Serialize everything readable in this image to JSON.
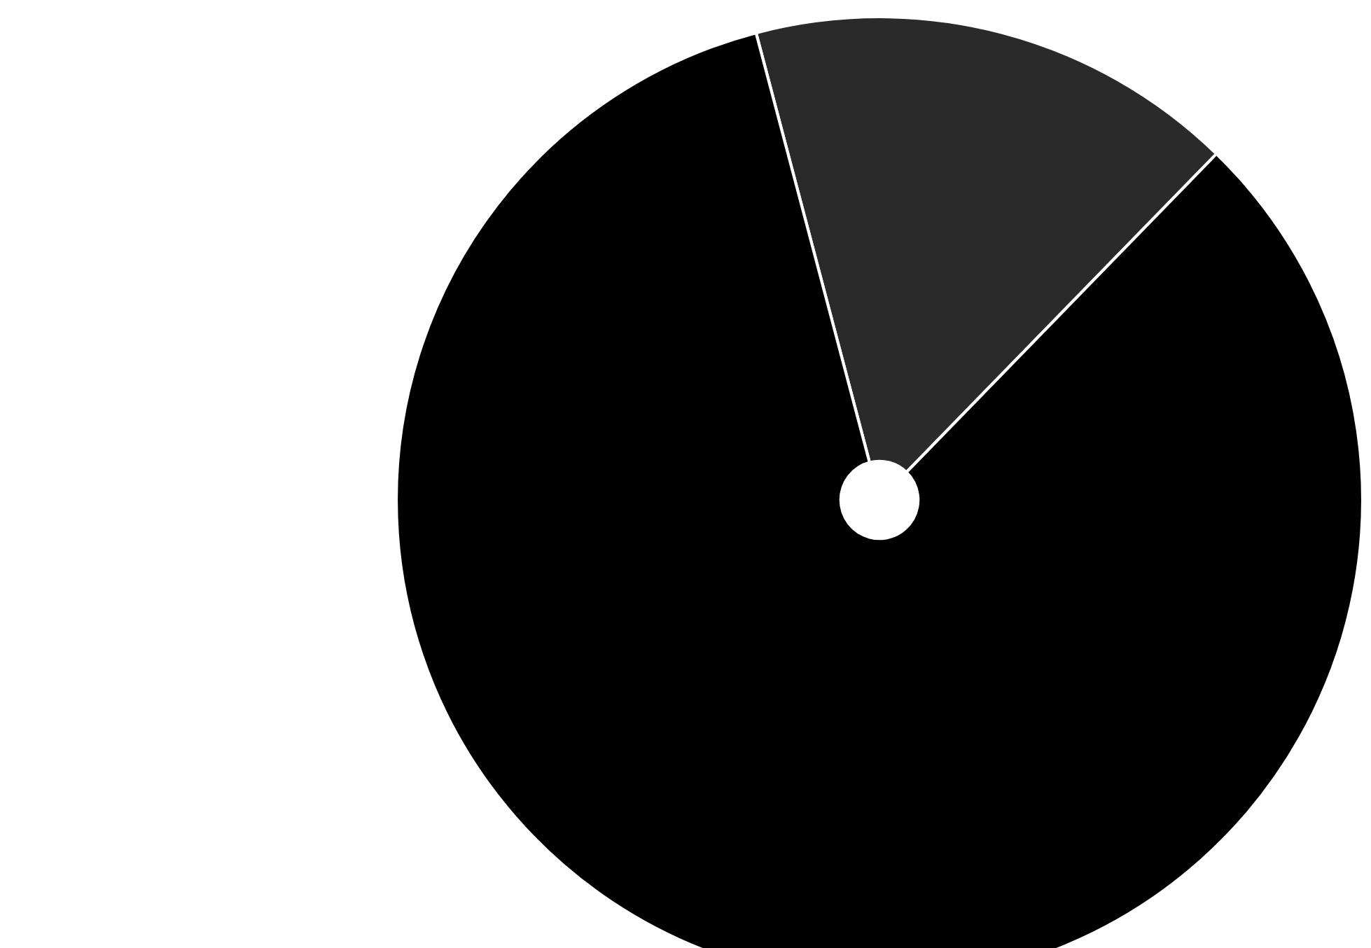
{
  "chart_data": {
    "type": "pie",
    "categories": [
      null,
      null
    ],
    "values": [
      16.4,
      83.6
    ],
    "colors": [
      "#2a2a2a",
      "#000000"
    ]
  }
}
